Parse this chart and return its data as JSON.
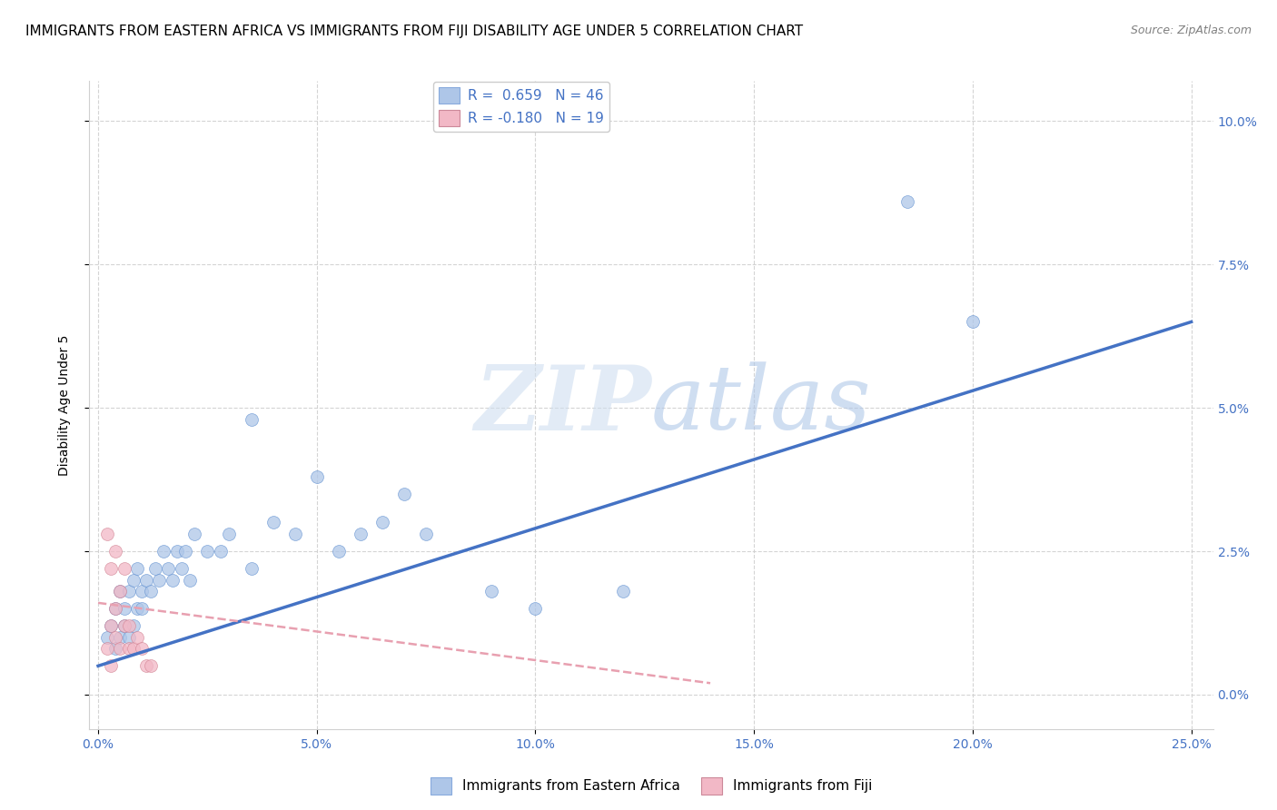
{
  "title": "IMMIGRANTS FROM EASTERN AFRICA VS IMMIGRANTS FROM FIJI DISABILITY AGE UNDER 5 CORRELATION CHART",
  "source": "Source: ZipAtlas.com",
  "xlabel_ticks": [
    "0.0%",
    "5.0%",
    "10.0%",
    "15.0%",
    "20.0%",
    "25.0%"
  ],
  "xlabel_vals": [
    0.0,
    0.05,
    0.1,
    0.15,
    0.2,
    0.25
  ],
  "ylabel_ticks": [
    "0.0%",
    "2.5%",
    "5.0%",
    "7.5%",
    "10.0%"
  ],
  "ylabel_vals": [
    0.0,
    0.025,
    0.05,
    0.075,
    0.1
  ],
  "xlim": [
    -0.002,
    0.255
  ],
  "ylim": [
    -0.006,
    0.107
  ],
  "ylabel": "Disability Age Under 5",
  "watermark_zip": "ZIP",
  "watermark_atlas": "atlas",
  "legend_blue_label": "R =  0.659   N = 46",
  "legend_pink_label": "R = -0.180   N = 19",
  "blue_color": "#aec6e8",
  "pink_color": "#f2b8c6",
  "blue_line_color": "#4472c4",
  "pink_line_color": "#e8a0b0",
  "blue_scatter": [
    [
      0.002,
      0.01
    ],
    [
      0.003,
      0.012
    ],
    [
      0.004,
      0.008
    ],
    [
      0.004,
      0.015
    ],
    [
      0.005,
      0.01
    ],
    [
      0.005,
      0.018
    ],
    [
      0.006,
      0.012
    ],
    [
      0.006,
      0.015
    ],
    [
      0.007,
      0.01
    ],
    [
      0.007,
      0.018
    ],
    [
      0.008,
      0.012
    ],
    [
      0.008,
      0.02
    ],
    [
      0.009,
      0.015
    ],
    [
      0.009,
      0.022
    ],
    [
      0.01,
      0.018
    ],
    [
      0.01,
      0.015
    ],
    [
      0.011,
      0.02
    ],
    [
      0.012,
      0.018
    ],
    [
      0.013,
      0.022
    ],
    [
      0.014,
      0.02
    ],
    [
      0.015,
      0.025
    ],
    [
      0.016,
      0.022
    ],
    [
      0.017,
      0.02
    ],
    [
      0.018,
      0.025
    ],
    [
      0.019,
      0.022
    ],
    [
      0.02,
      0.025
    ],
    [
      0.021,
      0.02
    ],
    [
      0.022,
      0.028
    ],
    [
      0.025,
      0.025
    ],
    [
      0.028,
      0.025
    ],
    [
      0.03,
      0.028
    ],
    [
      0.035,
      0.022
    ],
    [
      0.04,
      0.03
    ],
    [
      0.045,
      0.028
    ],
    [
      0.055,
      0.025
    ],
    [
      0.06,
      0.028
    ],
    [
      0.065,
      0.03
    ],
    [
      0.07,
      0.035
    ],
    [
      0.075,
      0.028
    ],
    [
      0.09,
      0.018
    ],
    [
      0.1,
      0.015
    ],
    [
      0.12,
      0.018
    ],
    [
      0.05,
      0.038
    ],
    [
      0.035,
      0.048
    ],
    [
      0.2,
      0.065
    ],
    [
      0.185,
      0.086
    ]
  ],
  "pink_scatter": [
    [
      0.002,
      0.008
    ],
    [
      0.003,
      0.005
    ],
    [
      0.003,
      0.012
    ],
    [
      0.004,
      0.01
    ],
    [
      0.004,
      0.015
    ],
    [
      0.005,
      0.008
    ],
    [
      0.005,
      0.018
    ],
    [
      0.006,
      0.012
    ],
    [
      0.006,
      0.022
    ],
    [
      0.007,
      0.008
    ],
    [
      0.007,
      0.012
    ],
    [
      0.008,
      0.008
    ],
    [
      0.009,
      0.01
    ],
    [
      0.01,
      0.008
    ],
    [
      0.011,
      0.005
    ],
    [
      0.002,
      0.028
    ],
    [
      0.003,
      0.022
    ],
    [
      0.004,
      0.025
    ],
    [
      0.012,
      0.005
    ]
  ],
  "blue_line_x": [
    0.0,
    0.25
  ],
  "blue_line_y": [
    0.005,
    0.065
  ],
  "pink_line_x": [
    0.0,
    0.14
  ],
  "pink_line_y": [
    0.016,
    0.002
  ],
  "background_color": "#ffffff",
  "grid_color": "#d0d0d0",
  "title_fontsize": 11,
  "axis_fontsize": 10,
  "tick_fontsize": 10,
  "tick_color": "#4472c4",
  "marker_size": 100
}
